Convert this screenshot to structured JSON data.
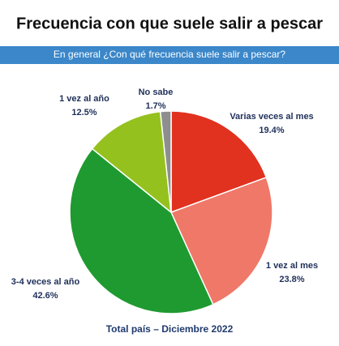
{
  "chart_data": {
    "type": "pie",
    "title": "Frecuencia con que suele salir a pescar",
    "subtitle": "En general ¿Con qué frecuencia suele salir a pescar?",
    "note": "Total país – Diciembre 2022",
    "categories": [
      "Varias veces al mes",
      "1 vez al mes",
      "3-4 veces al año",
      "1 vez al año",
      "No sabe"
    ],
    "values": [
      19.4,
      23.8,
      42.6,
      12.5,
      1.7
    ],
    "value_labels": [
      "19.4%",
      "23.8%",
      "42.6%",
      "12.5%",
      "1.7%"
    ],
    "colors": [
      "#e0321f",
      "#ef7868",
      "#1f9a30",
      "#95c11f",
      "#8e8e8e"
    ]
  }
}
